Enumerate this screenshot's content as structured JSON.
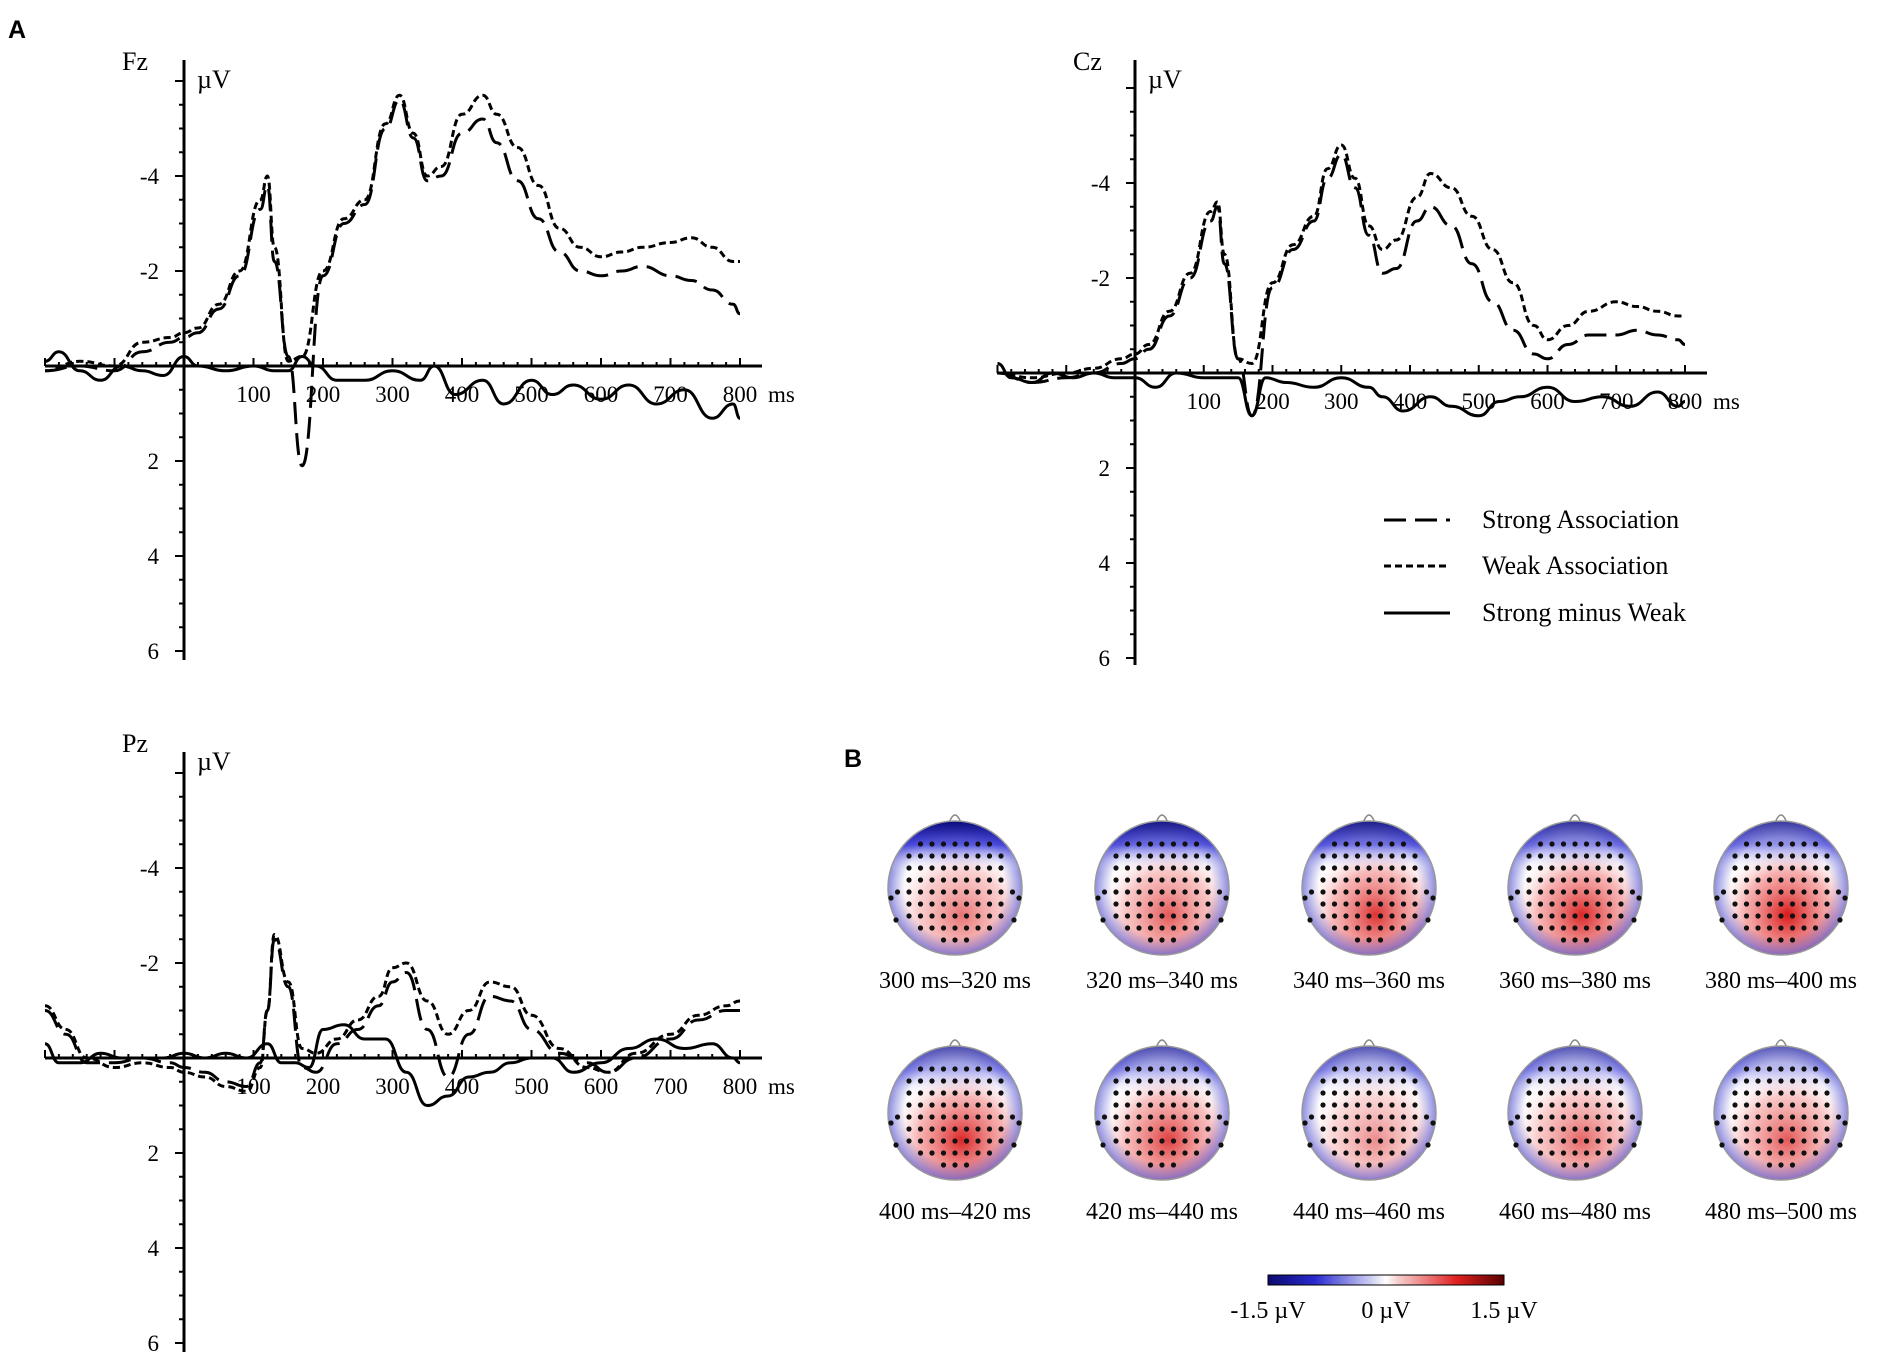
{
  "figure": {
    "panel_a_label": "A",
    "panel_b_label": "B"
  },
  "legend": {
    "strong": "Strong Association",
    "weak": "Weak Association",
    "diff": "Strong minus Weak"
  },
  "colorbar": {
    "min_label": "-1.5 µV",
    "mid_label": "0 µV",
    "max_label": "1.5 µV",
    "neg_color": "#1a1aa8",
    "pos_color": "#b30000"
  },
  "topomaps": [
    {
      "label": "300 ms–320 ms",
      "front_neg": 1.0,
      "post_pos": 0.55
    },
    {
      "label": "320 ms–340 ms",
      "front_neg": 0.9,
      "post_pos": 0.65
    },
    {
      "label": "340 ms–360 ms",
      "front_neg": 0.85,
      "post_pos": 0.8
    },
    {
      "label": "360 ms–380 ms",
      "front_neg": 0.7,
      "post_pos": 0.85
    },
    {
      "label": "380 ms–400 ms",
      "front_neg": 0.65,
      "post_pos": 0.9
    },
    {
      "label": "400 ms–420 ms",
      "front_neg": 0.5,
      "post_pos": 0.85
    },
    {
      "label": "420 ms–440 ms",
      "front_neg": 0.5,
      "post_pos": 0.75
    },
    {
      "label": "440 ms–460 ms",
      "front_neg": 0.45,
      "post_pos": 0.45
    },
    {
      "label": "460 ms–480 ms",
      "front_neg": 0.45,
      "post_pos": 0.6
    },
    {
      "label": "480 ms–500 ms",
      "front_neg": 0.4,
      "post_pos": 0.65
    }
  ],
  "chart_data": [
    {
      "type": "line",
      "title": "Fz",
      "ylabel": "µV",
      "xlabel": "ms",
      "xlim": [
        -200,
        800
      ],
      "ylim": [
        -6,
        6
      ],
      "y_inverted": true,
      "xticks": [
        100,
        200,
        300,
        400,
        500,
        600,
        700,
        800
      ],
      "yticks": [
        -4,
        -2,
        2,
        4,
        6
      ],
      "series": [
        {
          "name": "Strong Association",
          "style": "dashed-long",
          "x": [
            -200,
            -150,
            -100,
            -60,
            -20,
            0,
            20,
            50,
            80,
            110,
            120,
            130,
            150,
            170,
            200,
            230,
            260,
            290,
            310,
            330,
            350,
            370,
            400,
            430,
            450,
            480,
            510,
            540,
            570,
            600,
            630,
            660,
            700,
            730,
            760,
            790,
            800
          ],
          "y": [
            0.1,
            0.0,
            0.1,
            -0.3,
            -0.5,
            -0.6,
            -0.7,
            -1.2,
            -1.9,
            -3.3,
            -3.8,
            -2.2,
            -0.2,
            2.1,
            -1.9,
            -3.0,
            -3.4,
            -5.0,
            -5.6,
            -4.8,
            -3.9,
            -4.0,
            -4.9,
            -5.2,
            -4.7,
            -3.9,
            -3.1,
            -2.4,
            -2.0,
            -1.9,
            -2.0,
            -2.1,
            -1.9,
            -1.8,
            -1.6,
            -1.3,
            -1.1
          ]
        },
        {
          "name": "Weak Association",
          "style": "dashed-short",
          "x": [
            -200,
            -150,
            -100,
            -60,
            -20,
            0,
            20,
            50,
            80,
            110,
            120,
            130,
            150,
            170,
            200,
            230,
            260,
            290,
            310,
            330,
            350,
            370,
            400,
            430,
            450,
            480,
            510,
            540,
            570,
            600,
            630,
            660,
            700,
            730,
            760,
            790,
            800
          ],
          "y": [
            0.1,
            -0.1,
            0.0,
            -0.5,
            -0.6,
            -0.7,
            -0.8,
            -1.3,
            -2.0,
            -3.5,
            -4.0,
            -2.5,
            -0.1,
            -0.2,
            -2.0,
            -3.1,
            -3.5,
            -5.1,
            -5.7,
            -4.9,
            -4.0,
            -4.2,
            -5.3,
            -5.7,
            -5.3,
            -4.6,
            -3.8,
            -2.9,
            -2.5,
            -2.3,
            -2.4,
            -2.5,
            -2.6,
            -2.7,
            -2.5,
            -2.2,
            -2.2
          ]
        },
        {
          "name": "Strong minus Weak",
          "style": "solid",
          "x": [
            -200,
            -180,
            -150,
            -120,
            -90,
            -60,
            -30,
            0,
            20,
            60,
            100,
            130,
            150,
            170,
            190,
            220,
            260,
            300,
            340,
            360,
            390,
            430,
            460,
            500,
            530,
            560,
            600,
            640,
            680,
            720,
            760,
            790,
            800
          ],
          "y": [
            -0.1,
            -0.3,
            0.1,
            0.3,
            0.0,
            0.1,
            0.2,
            -0.2,
            0.0,
            0.1,
            0.0,
            0.1,
            0.1,
            -0.2,
            0.0,
            0.3,
            0.3,
            0.1,
            0.3,
            0.0,
            0.6,
            0.3,
            0.8,
            0.3,
            0.6,
            0.4,
            0.7,
            0.4,
            0.8,
            0.5,
            1.1,
            0.8,
            1.1
          ]
        }
      ]
    },
    {
      "type": "line",
      "title": "Cz",
      "ylabel": "µV",
      "xlabel": "ms",
      "xlim": [
        -200,
        800
      ],
      "ylim": [
        -6,
        6
      ],
      "y_inverted": true,
      "xticks": [
        100,
        200,
        300,
        400,
        500,
        600,
        700,
        800
      ],
      "yticks": [
        -4,
        -2,
        2,
        4,
        6
      ],
      "series": [
        {
          "name": "Strong Association",
          "style": "dashed-long",
          "x": [
            -200,
            -150,
            -100,
            -60,
            -20,
            0,
            20,
            50,
            80,
            110,
            120,
            130,
            150,
            170,
            200,
            230,
            260,
            280,
            300,
            320,
            340,
            360,
            380,
            410,
            430,
            460,
            490,
            520,
            550,
            580,
            600,
            630,
            660,
            700,
            730,
            760,
            790,
            800
          ],
          "y": [
            0.0,
            0.2,
            0.1,
            0.0,
            -0.2,
            -0.3,
            -0.5,
            -1.2,
            -2.0,
            -3.2,
            -3.5,
            -2.3,
            -0.3,
            0.9,
            -1.8,
            -2.6,
            -3.2,
            -4.1,
            -4.6,
            -3.9,
            -2.9,
            -2.1,
            -2.2,
            -3.2,
            -3.5,
            -3.1,
            -2.3,
            -1.5,
            -0.9,
            -0.4,
            -0.3,
            -0.6,
            -0.8,
            -0.8,
            -0.9,
            -0.8,
            -0.7,
            -0.6
          ]
        },
        {
          "name": "Weak Association",
          "style": "dashed-short",
          "x": [
            -200,
            -150,
            -100,
            -60,
            -20,
            0,
            20,
            50,
            80,
            110,
            120,
            130,
            150,
            170,
            200,
            230,
            260,
            280,
            300,
            320,
            340,
            360,
            380,
            410,
            430,
            460,
            490,
            520,
            550,
            580,
            600,
            630,
            660,
            700,
            730,
            760,
            790,
            800
          ],
          "y": [
            0.0,
            0.1,
            0.0,
            -0.1,
            -0.3,
            -0.4,
            -0.6,
            -1.3,
            -2.1,
            -3.4,
            -3.6,
            -2.5,
            -0.3,
            -0.2,
            -1.9,
            -2.7,
            -3.3,
            -4.3,
            -4.8,
            -4.1,
            -3.1,
            -2.6,
            -2.8,
            -3.7,
            -4.2,
            -3.9,
            -3.3,
            -2.6,
            -1.9,
            -1.0,
            -0.7,
            -1.0,
            -1.3,
            -1.5,
            -1.4,
            -1.3,
            -1.2,
            -1.2
          ]
        },
        {
          "name": "Strong minus Weak",
          "style": "solid",
          "x": [
            -200,
            -180,
            -150,
            -120,
            -90,
            -60,
            -30,
            0,
            30,
            60,
            100,
            130,
            150,
            170,
            190,
            220,
            260,
            300,
            340,
            360,
            390,
            430,
            460,
            500,
            530,
            560,
            600,
            640,
            680,
            720,
            760,
            790,
            800
          ],
          "y": [
            -0.2,
            0.1,
            0.2,
            0.0,
            0.1,
            0.0,
            0.1,
            0.1,
            0.3,
            0.0,
            0.1,
            0.1,
            0.1,
            0.9,
            0.1,
            0.2,
            0.3,
            0.1,
            0.3,
            0.5,
            0.8,
            0.5,
            0.7,
            0.9,
            0.6,
            0.5,
            0.3,
            0.6,
            0.5,
            0.7,
            0.4,
            0.7,
            0.6
          ]
        }
      ]
    },
    {
      "type": "line",
      "title": "Pz",
      "ylabel": "µV",
      "xlabel": "ms",
      "xlim": [
        -200,
        800
      ],
      "ylim": [
        -6,
        6
      ],
      "y_inverted": true,
      "xticks": [
        100,
        200,
        300,
        400,
        500,
        600,
        700,
        800
      ],
      "yticks": [
        -4,
        -2,
        2,
        4,
        6
      ],
      "series": [
        {
          "name": "Strong Association",
          "style": "dashed-long",
          "x": [
            -200,
            -170,
            -140,
            -100,
            -60,
            -20,
            0,
            30,
            60,
            90,
            110,
            120,
            130,
            150,
            170,
            190,
            220,
            250,
            280,
            300,
            320,
            350,
            380,
            410,
            440,
            470,
            500,
            540,
            580,
            610,
            650,
            700,
            740,
            780,
            800
          ],
          "y": [
            -1.0,
            -0.5,
            0.1,
            0.1,
            0.0,
            0.1,
            0.2,
            0.3,
            0.5,
            0.6,
            0.1,
            -1.0,
            -2.5,
            -1.5,
            0.2,
            0.3,
            -0.3,
            -0.6,
            -1.1,
            -1.6,
            -1.8,
            -0.6,
            0.4,
            -0.5,
            -1.3,
            -1.2,
            -0.6,
            -0.1,
            0.1,
            0.3,
            0.0,
            -0.4,
            -0.8,
            -1.0,
            -1.0
          ]
        },
        {
          "name": "Weak Association",
          "style": "dashed-short",
          "x": [
            -200,
            -170,
            -140,
            -100,
            -60,
            -20,
            0,
            30,
            60,
            90,
            110,
            120,
            130,
            150,
            170,
            190,
            220,
            250,
            280,
            300,
            320,
            350,
            380,
            410,
            440,
            470,
            500,
            540,
            580,
            610,
            650,
            700,
            740,
            780,
            800
          ],
          "y": [
            -1.1,
            -0.6,
            0.0,
            0.2,
            0.1,
            0.2,
            0.3,
            0.4,
            0.6,
            0.7,
            0.2,
            -1.0,
            -2.6,
            -1.6,
            -0.2,
            -0.1,
            -0.4,
            -0.8,
            -1.3,
            -1.9,
            -2.0,
            -1.2,
            -0.5,
            -1.0,
            -1.6,
            -1.5,
            -0.9,
            -0.2,
            0.2,
            0.3,
            -0.1,
            -0.5,
            -0.9,
            -1.1,
            -1.2
          ]
        },
        {
          "name": "Strong minus Weak",
          "style": "solid",
          "x": [
            -200,
            -180,
            -150,
            -120,
            -90,
            -60,
            -30,
            0,
            30,
            60,
            90,
            120,
            140,
            160,
            180,
            200,
            230,
            260,
            290,
            320,
            350,
            380,
            410,
            440,
            470,
            500,
            530,
            560,
            600,
            640,
            680,
            720,
            760,
            790,
            800
          ],
          "y": [
            -0.3,
            0.1,
            0.1,
            -0.1,
            0.0,
            0.0,
            0.0,
            -0.1,
            0.0,
            -0.1,
            0.0,
            -0.3,
            0.1,
            0.1,
            0.2,
            -0.6,
            -0.7,
            -0.4,
            -0.4,
            0.3,
            1.0,
            0.8,
            0.4,
            0.3,
            0.1,
            0.0,
            0.0,
            0.3,
            0.1,
            -0.2,
            -0.4,
            -0.2,
            -0.3,
            0.0,
            0.1
          ]
        }
      ]
    }
  ]
}
